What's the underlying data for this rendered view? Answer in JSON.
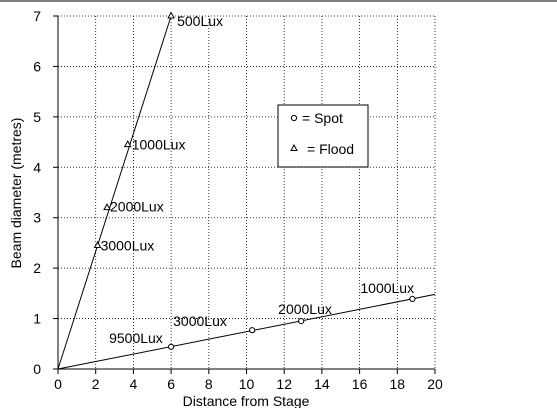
{
  "chart_data": {
    "type": "scatter",
    "xlabel": "Distance from Stage",
    "ylabel": "Beam diameter (metres)",
    "xlim": [
      0,
      20
    ],
    "ylim": [
      0,
      7
    ],
    "xticks": [
      "0",
      "2",
      "4",
      "6",
      "8",
      "10",
      "12",
      "14",
      "16",
      "18",
      "20"
    ],
    "yticks": [
      "0",
      "1",
      "2",
      "3",
      "4",
      "5",
      "6",
      "7"
    ],
    "grid": "dotted",
    "legend_position": "center-right",
    "series": [
      {
        "name": "Spot",
        "legend_label": "= Spot",
        "marker": "circle",
        "line": {
          "x": [
            0,
            20
          ],
          "y": [
            0,
            1.48
          ]
        },
        "points": [
          {
            "x": 6.0,
            "y": 0.44,
            "label": "9500Lux"
          },
          {
            "x": 10.3,
            "y": 0.77,
            "label": "3000Lux"
          },
          {
            "x": 12.9,
            "y": 0.95,
            "label": "2000Lux"
          },
          {
            "x": 18.8,
            "y": 1.39,
            "label": "1000Lux"
          }
        ]
      },
      {
        "name": "Flood",
        "legend_label": "= Flood",
        "marker": "triangle",
        "line": {
          "x": [
            0,
            6.0
          ],
          "y": [
            0,
            7.0
          ]
        },
        "points": [
          {
            "x": 2.1,
            "y": 2.45,
            "label": "3000Lux"
          },
          {
            "x": 2.6,
            "y": 3.2,
            "label": "2000Lux"
          },
          {
            "x": 3.7,
            "y": 4.45,
            "label": "1000Lux"
          },
          {
            "x": 6.0,
            "y": 7.0,
            "label": "500Lux"
          }
        ]
      }
    ]
  }
}
